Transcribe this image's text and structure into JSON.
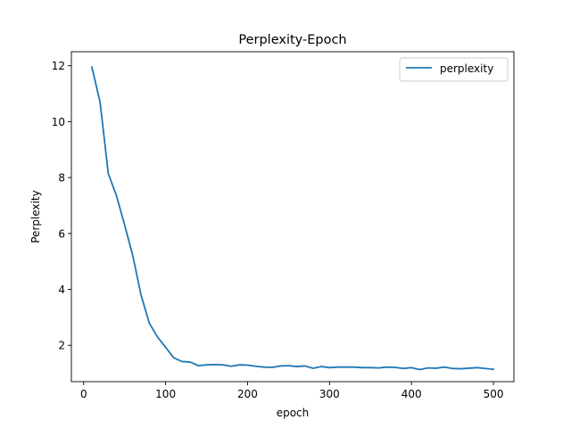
{
  "chart_data": {
    "type": "line",
    "title": "Perplexity-Epoch",
    "xlabel": "epoch",
    "ylabel": "Perplexity",
    "xlim": [
      -15,
      525
    ],
    "ylim": [
      0.7,
      12.5
    ],
    "xticks": [
      0,
      100,
      200,
      300,
      400,
      500
    ],
    "yticks": [
      2,
      4,
      6,
      8,
      10,
      12
    ],
    "grid": false,
    "legend_position": "top-right",
    "series": [
      {
        "name": "perplexity",
        "color": "#1f77b4",
        "x": [
          10,
          20,
          30,
          40,
          50,
          60,
          70,
          80,
          90,
          100,
          110,
          120,
          130,
          140,
          150,
          160,
          170,
          180,
          190,
          200,
          210,
          220,
          230,
          240,
          250,
          260,
          270,
          280,
          290,
          300,
          310,
          320,
          330,
          340,
          350,
          360,
          370,
          380,
          390,
          400,
          410,
          420,
          430,
          440,
          450,
          460,
          470,
          480,
          490,
          500
        ],
        "y": [
          11.95,
          10.7,
          8.15,
          7.35,
          6.3,
          5.2,
          3.8,
          2.8,
          2.3,
          1.93,
          1.55,
          1.42,
          1.4,
          1.27,
          1.3,
          1.31,
          1.3,
          1.25,
          1.3,
          1.29,
          1.25,
          1.22,
          1.21,
          1.26,
          1.27,
          1.24,
          1.26,
          1.18,
          1.24,
          1.2,
          1.22,
          1.22,
          1.22,
          1.2,
          1.2,
          1.19,
          1.22,
          1.21,
          1.17,
          1.2,
          1.13,
          1.19,
          1.18,
          1.22,
          1.17,
          1.16,
          1.18,
          1.2,
          1.17,
          1.14
        ]
      }
    ]
  }
}
